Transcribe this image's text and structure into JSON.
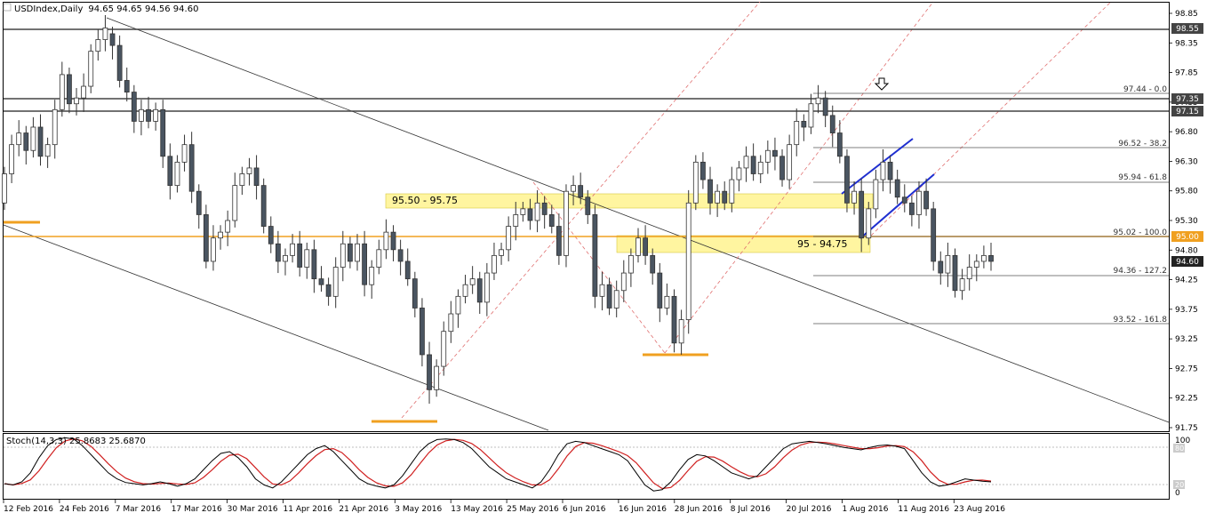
{
  "header": {
    "symbol": "USDIndex,Daily",
    "ohlc": "94.65 94.65 94.56 94.60"
  },
  "stoch": {
    "label": "Stoch(14,3,3) 25.8683 25.6870",
    "levels": [
      "100",
      "80",
      "20",
      "0"
    ]
  },
  "annotations": {
    "zone_upper": "95.50 - 95.75",
    "zone_lower": "95 - 94.75",
    "fib": [
      "97.44 - 0.0",
      "96.52 - 38.2",
      "95.94 - 61.8",
      "95.02 - 100.0",
      "94.36 - 127.2",
      "93.52 - 161.8"
    ]
  },
  "price_tags": [
    "98.55",
    "97.35",
    "97.15",
    "95.00",
    "94.60"
  ],
  "colors": {
    "bull": "#ffffff",
    "bear": "#4a5561",
    "zone": "#fff5a0",
    "orange": "#f0a020",
    "blue_channel": "#1f2fd0",
    "fib_dashed": "#e07070",
    "stoch_main": "#000000",
    "stoch_signal": "#d02020"
  },
  "chart_data": {
    "type": "candlestick",
    "y_axis_ticks": [
      "98.85",
      "98.35",
      "97.85",
      "97.35",
      "96.80",
      "96.30",
      "95.80",
      "95.30",
      "94.80",
      "94.25",
      "93.75",
      "93.25",
      "92.75",
      "92.25",
      "91.75"
    ],
    "x_axis_ticks": [
      "12 Feb 2016",
      "24 Feb 2016",
      "7 Mar 2016",
      "17 Mar 2016",
      "30 Mar 2016",
      "11 Apr 2016",
      "21 Apr 2016",
      "3 May 2016",
      "13 May 2016",
      "25 May 2016",
      "6 Jun 2016",
      "16 Jun 2016",
      "28 Jun 2016",
      "8 Jul 2016",
      "20 Jul 2016",
      "1 Aug 2016",
      "11 Aug 2016",
      "23 Aug 2016"
    ],
    "horizontal_levels": [
      98.55,
      97.35,
      97.15,
      95.0
    ],
    "ylim": [
      91.75,
      99.0
    ],
    "last_close": 94.6
  }
}
